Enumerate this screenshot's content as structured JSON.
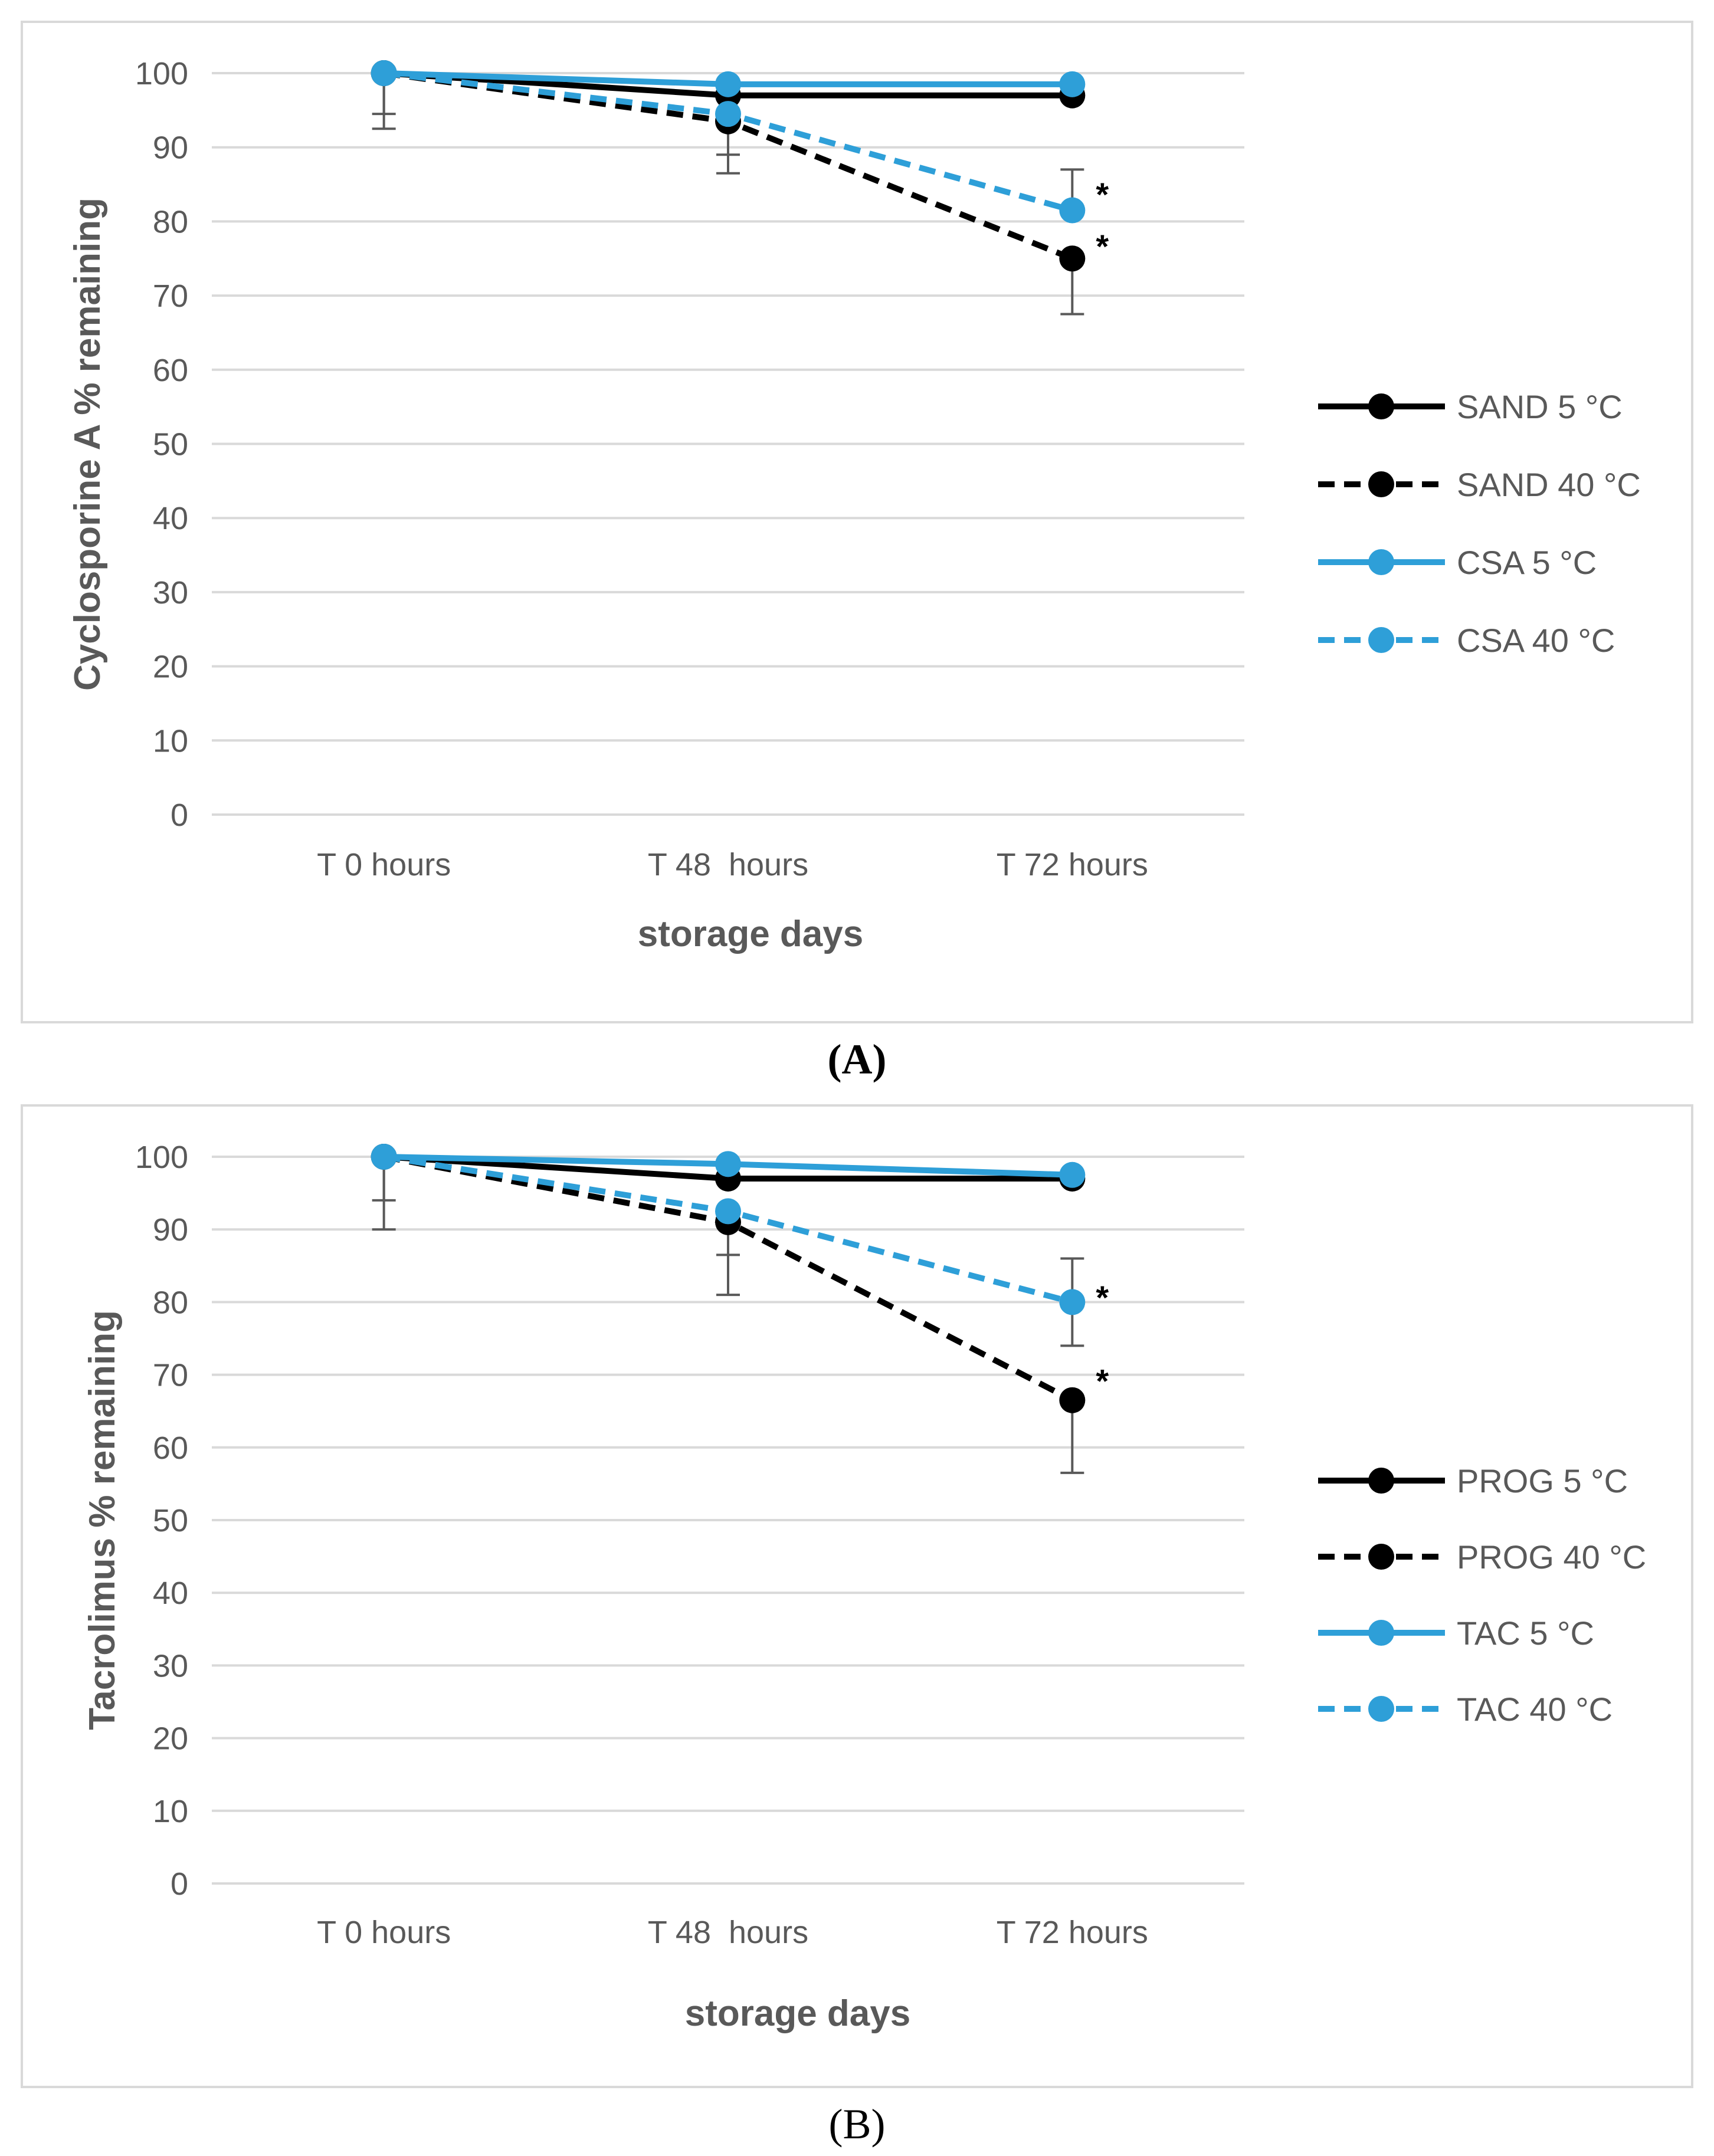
{
  "chart_data": [
    {
      "type": "line",
      "panel_label": "A",
      "title": "",
      "xlabel": "storage days",
      "ylabel": "Cyclosporine A % remaining",
      "ylim": [
        0,
        100
      ],
      "yticks": [
        0,
        10,
        20,
        30,
        40,
        50,
        60,
        70,
        80,
        90,
        100
      ],
      "categories": [
        "T 0 hours",
        "T 48  hours",
        "T 72 hours"
      ],
      "grid": true,
      "legend_position": "right",
      "series": [
        {
          "name": "SAND 5 °C",
          "color": "#000000",
          "dash": "solid",
          "values": [
            100,
            97,
            97
          ],
          "err_low": [
            0,
            0,
            0
          ],
          "err_high": [
            0,
            0,
            0
          ]
        },
        {
          "name": "SAND 40 °C",
          "color": "#000000",
          "dash": "dashed",
          "values": [
            100,
            93.5,
            75
          ],
          "err_low": [
            7.5,
            7,
            7.5
          ],
          "err_high": [
            0,
            0,
            0
          ]
        },
        {
          "name": "CSA 5 °C",
          "color": "#2e9fd8",
          "dash": "solid",
          "values": [
            100,
            98.5,
            98.5
          ],
          "err_low": [
            0,
            0,
            0
          ],
          "err_high": [
            0,
            0,
            0
          ]
        },
        {
          "name": "CSA 40 °C",
          "color": "#2e9fd8",
          "dash": "dashed",
          "values": [
            100,
            94.5,
            81.5
          ],
          "err_low": [
            5.5,
            5.5,
            0
          ],
          "err_high": [
            0,
            0,
            5.5
          ]
        }
      ],
      "annotations": [
        {
          "text": "*",
          "category": "T 72 hours",
          "y": 84.5
        },
        {
          "text": "*",
          "category": "T 72 hours",
          "y": 77.5
        }
      ]
    },
    {
      "type": "line",
      "panel_label": "B",
      "title": "",
      "xlabel": "storage days",
      "ylabel": "Tacrolimus % remaining",
      "ylim": [
        0,
        100
      ],
      "yticks": [
        0,
        10,
        20,
        30,
        40,
        50,
        60,
        70,
        80,
        90,
        100
      ],
      "categories": [
        "T 0 hours",
        "T 48  hours",
        "T 72 hours"
      ],
      "grid": true,
      "legend_position": "right",
      "series": [
        {
          "name": "PROG 5 °C",
          "color": "#000000",
          "dash": "solid",
          "values": [
            100,
            97,
            97
          ],
          "err_low": [
            0,
            0,
            0
          ],
          "err_high": [
            0,
            0,
            0
          ]
        },
        {
          "name": "PROG 40 °C",
          "color": "#000000",
          "dash": "dashed",
          "values": [
            100,
            91,
            66.5
          ],
          "err_low": [
            10,
            10,
            10
          ],
          "err_high": [
            0,
            0,
            0
          ]
        },
        {
          "name": "TAC 5 °C",
          "color": "#2e9fd8",
          "dash": "solid",
          "values": [
            100,
            99,
            97.5
          ],
          "err_low": [
            0,
            0,
            0
          ],
          "err_high": [
            0,
            0,
            0
          ]
        },
        {
          "name": "TAC 40 °C",
          "color": "#2e9fd8",
          "dash": "dashed",
          "values": [
            100,
            92.5,
            80
          ],
          "err_low": [
            6,
            6,
            6
          ],
          "err_high": [
            0,
            0,
            6
          ]
        }
      ],
      "annotations": [
        {
          "text": "*",
          "category": "T 72 hours",
          "y": 81.5
        },
        {
          "text": "*",
          "category": "T 72 hours",
          "y": 70
        }
      ]
    }
  ],
  "panel_labels": {
    "a": "(A)",
    "b": "(B)"
  }
}
